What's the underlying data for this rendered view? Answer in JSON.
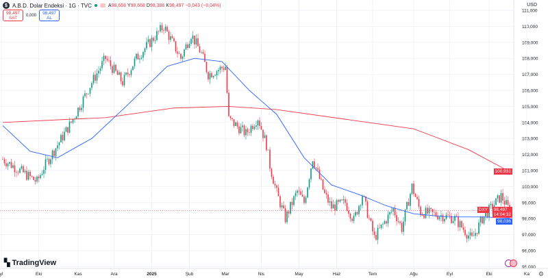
{
  "header": {
    "symbol_title": "A.B.D. Dolar Endeksi · 1G · TVC",
    "logo": "$",
    "ohlc": {
      "o_label": "A",
      "o": "98,668",
      "h_label": "Y",
      "h": "98,668",
      "l_label": "D",
      "l": "98,386",
      "c_label": "K",
      "c": "98,497",
      "change": "−0,043 (−0,04%)"
    }
  },
  "trade": {
    "sell_price": "98,497",
    "sell_label": "SAT",
    "spread": "0,000",
    "buy_price": "98,497",
    "buy_label": "AL"
  },
  "currency": "USD",
  "tags": {
    "ma200": "100,931",
    "symbol": "DXY",
    "price": "98,497",
    "countdown": "14:04:32",
    "ma50": "98,036"
  },
  "brand": "TradingView",
  "colors": {
    "up": "#089981",
    "down": "#f23645",
    "ma50": "#2962ff",
    "ma200": "#f23645"
  },
  "chart_data": {
    "type": "candlestick",
    "title": "A.B.D. Dolar Endeksi · 1G · TVC",
    "ylim": [
      95,
      111.5
    ],
    "y_ticks": [
      "111,000",
      "110,000",
      "109,000",
      "108,000",
      "107,000",
      "106,000",
      "105,000",
      "104,000",
      "103,000",
      "102,000",
      "101,000",
      "100,000",
      "99,000",
      "98,000",
      "97,000",
      "96,000",
      "95,000"
    ],
    "x_range": [
      0,
      296
    ],
    "x_ticks": [
      {
        "label": "yl",
        "d": 0
      },
      {
        "label": "Eki",
        "d": 21
      },
      {
        "label": "Kas",
        "d": 44
      },
      {
        "label": "Ara",
        "d": 65
      },
      {
        "label": "2025",
        "d": 87
      },
      {
        "label": "Şub",
        "d": 109
      },
      {
        "label": "Mar",
        "d": 130
      },
      {
        "label": "Nis",
        "d": 151
      },
      {
        "label": "May",
        "d": 173
      },
      {
        "label": "Haz",
        "d": 195
      },
      {
        "label": "Tem",
        "d": 216
      },
      {
        "label": "Ağu",
        "d": 240
      },
      {
        "label": "Eyl",
        "d": 261
      },
      {
        "label": "Eki",
        "d": 284
      },
      {
        "label": "Ka",
        "d": 306
      }
    ],
    "close_keypoints": [
      [
        0,
        101.7
      ],
      [
        20,
        100.3
      ],
      [
        24,
        101.2
      ],
      [
        40,
        104
      ],
      [
        52,
        106.5
      ],
      [
        60,
        108
      ],
      [
        70,
        106.5
      ],
      [
        78,
        108
      ],
      [
        94,
        110
      ],
      [
        104,
        108
      ],
      [
        110,
        109.5
      ],
      [
        116,
        108.3
      ],
      [
        120,
        107
      ],
      [
        130,
        107.5
      ],
      [
        132,
        104.2
      ],
      [
        142,
        103.3
      ],
      [
        149,
        104.3
      ],
      [
        154,
        102.6
      ],
      [
        156,
        101.3
      ],
      [
        160,
        99.6
      ],
      [
        165,
        98
      ],
      [
        172,
        99.7
      ],
      [
        176,
        99
      ],
      [
        181,
        101.8
      ],
      [
        188,
        99.5
      ],
      [
        192,
        98.7
      ],
      [
        200,
        99
      ],
      [
        205,
        97.9
      ],
      [
        210,
        99.5
      ],
      [
        217,
        96.8
      ],
      [
        228,
        98.6
      ],
      [
        233,
        97.4
      ],
      [
        239,
        100
      ],
      [
        244,
        98.4
      ],
      [
        256,
        98.2
      ],
      [
        264,
        98
      ],
      [
        274,
        96.7
      ],
      [
        280,
        98
      ],
      [
        291,
        99.4
      ],
      [
        296,
        98.5
      ]
    ],
    "series": [
      {
        "name": "MA 200",
        "color": "#f23645",
        "points": [
          [
            0,
            104.0
          ],
          [
            60,
            104.3
          ],
          [
            100,
            104.9
          ],
          [
            132,
            105.0
          ],
          [
            160,
            104.8
          ],
          [
            200,
            104.2
          ],
          [
            240,
            103.6
          ],
          [
            272,
            102.3
          ],
          [
            296,
            100.93
          ]
        ]
      },
      {
        "name": "MA 50",
        "color": "#2962ff",
        "points": [
          [
            0,
            103.8
          ],
          [
            16,
            102.2
          ],
          [
            32,
            101.8
          ],
          [
            52,
            103
          ],
          [
            72,
            105
          ],
          [
            96,
            107.5
          ],
          [
            112,
            108
          ],
          [
            128,
            107.8
          ],
          [
            144,
            106
          ],
          [
            160,
            104.5
          ],
          [
            176,
            101.8
          ],
          [
            192,
            100.1
          ],
          [
            208,
            99.5
          ],
          [
            224,
            98.8
          ],
          [
            240,
            98.3
          ],
          [
            260,
            98.1
          ],
          [
            280,
            98.1
          ],
          [
            296,
            98.04
          ]
        ]
      }
    ],
    "last_close": 98.497
  }
}
